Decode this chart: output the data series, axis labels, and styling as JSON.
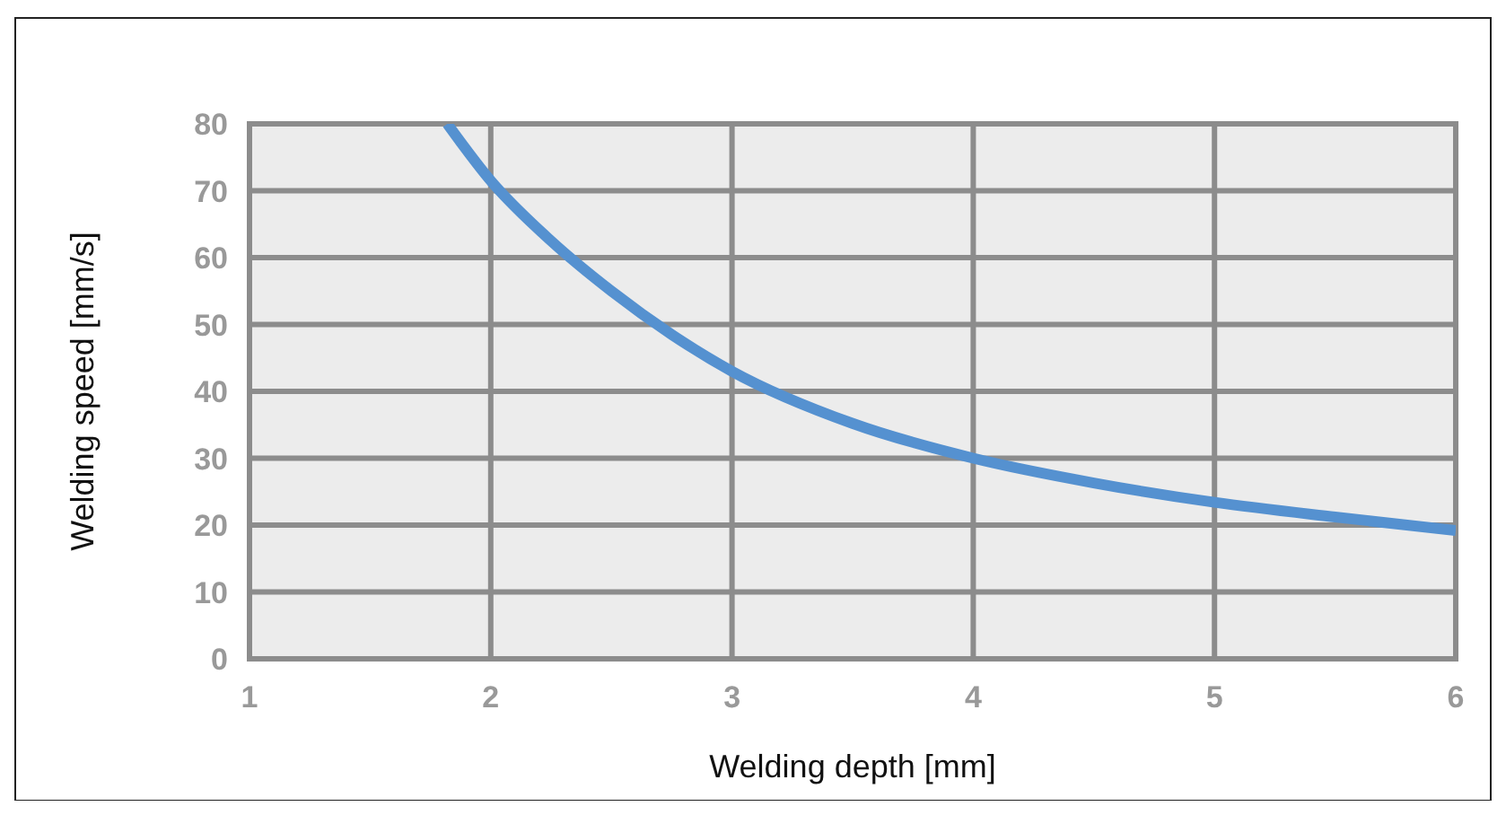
{
  "chart_data": {
    "type": "line",
    "xlabel": "Welding depth [mm]",
    "ylabel": "Welding speed [mm/s]",
    "series": [
      {
        "color": "#5591d0",
        "x": [
          1.82,
          2,
          2.25,
          2.5,
          2.75,
          3,
          3.5,
          4,
          4.5,
          5,
          5.5,
          6
        ],
        "values": [
          80,
          71.5,
          62.5,
          55,
          48.5,
          43,
          35.2,
          30,
          26.3,
          23.4,
          21.2,
          19.2
        ]
      }
    ],
    "xlim": [
      1,
      6
    ],
    "xticks": [
      1,
      2,
      3,
      4,
      5,
      6
    ],
    "ylim": [
      0,
      80
    ],
    "yticks": [
      0,
      10,
      20,
      30,
      40,
      50,
      60,
      70,
      80
    ],
    "grid": true,
    "marker": "none",
    "line_style": "solid"
  }
}
